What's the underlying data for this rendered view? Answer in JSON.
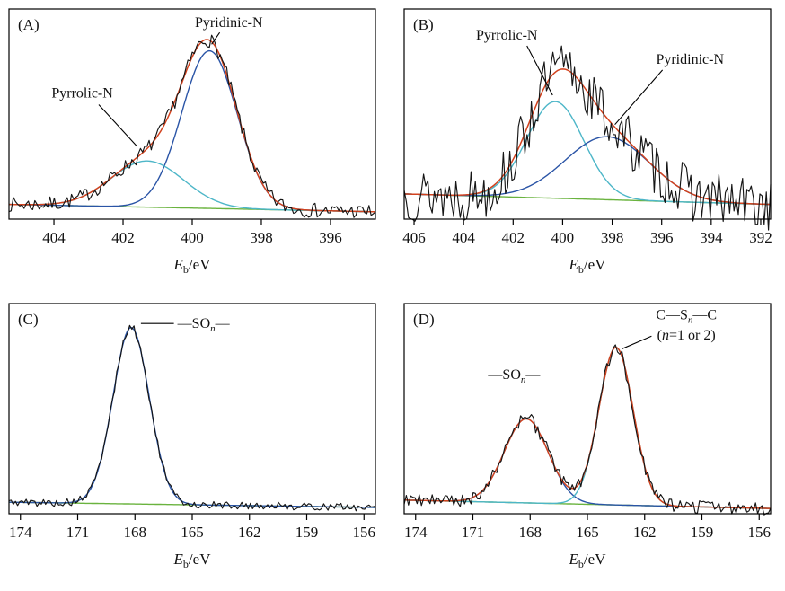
{
  "colors": {
    "raw": "#151515",
    "envelope": "#d2421e",
    "blue": "#2a54a6",
    "cyan": "#4db6c8",
    "baseline": "#6ab33f",
    "axis": "#000000"
  },
  "chart_data": [
    {
      "type": "line",
      "panel_label": "(A)",
      "xlabel": {
        "symbol": "E",
        "sub": "b",
        "unit": "/eV"
      },
      "x_domain": [
        405.3,
        394.7
      ],
      "x_ticks": [
        404,
        402,
        400,
        398,
        396
      ],
      "baseline": [
        0.07,
        0.035
      ],
      "noise_amp": 0.035,
      "seed": 7,
      "envelope": true,
      "peaks": [
        {
          "name": "Pyridinic-N",
          "center": 399.5,
          "sigma": 0.8,
          "height": 0.75,
          "color": "blue"
        },
        {
          "name": "Pyrrolic-N",
          "center": 401.3,
          "sigma": 1.05,
          "height": 0.22,
          "color": "cyan"
        }
      ],
      "annotations": [
        {
          "lines": [
            [
              {
                "t": "Pyridinic-N"
              }
            ]
          ],
          "tx": 0.6,
          "ty": 0.085,
          "anchor": "middle",
          "leader": [
            0.575,
            0.112,
            0.553,
            0.168
          ]
        },
        {
          "lines": [
            [
              {
                "t": "Pyrrolic-N"
              }
            ]
          ],
          "tx": 0.2,
          "ty": 0.42,
          "anchor": "middle",
          "leader": [
            0.245,
            0.455,
            0.35,
            0.655
          ]
        }
      ]
    },
    {
      "type": "line",
      "panel_label": "(B)",
      "xlabel": {
        "symbol": "E",
        "sub": "b",
        "unit": "/eV"
      },
      "x_domain": [
        406.4,
        391.6
      ],
      "x_ticks": [
        406,
        404,
        402,
        400,
        398,
        396,
        394,
        392
      ],
      "baseline": [
        0.12,
        0.07
      ],
      "noise_amp": 0.13,
      "seed": 13,
      "envelope": true,
      "peaks": [
        {
          "name": "Pyrrolic-N",
          "center": 400.3,
          "sigma": 1.15,
          "height": 0.46,
          "color": "cyan"
        },
        {
          "name": "Pyridinic-N",
          "center": 398.2,
          "sigma": 1.7,
          "height": 0.3,
          "color": "blue"
        }
      ],
      "annotations": [
        {
          "lines": [
            [
              {
                "t": "Pyrrolic-N"
              }
            ]
          ],
          "tx": 0.28,
          "ty": 0.145,
          "anchor": "middle",
          "leader": [
            0.335,
            0.175,
            0.405,
            0.41
          ]
        },
        {
          "lines": [
            [
              {
                "t": "Pyridinic-N"
              }
            ]
          ],
          "tx": 0.78,
          "ty": 0.26,
          "anchor": "middle",
          "leader": [
            0.705,
            0.29,
            0.575,
            0.55
          ]
        }
      ]
    },
    {
      "type": "line",
      "panel_label": "(C)",
      "xlabel": {
        "symbol": "E",
        "sub": "b",
        "unit": "/eV"
      },
      "x_domain": [
        174.6,
        155.4
      ],
      "x_ticks": [
        174,
        171,
        168,
        165,
        162,
        159,
        156
      ],
      "baseline": [
        0.055,
        0.03
      ],
      "noise_amp": 0.018,
      "seed": 5,
      "envelope": false,
      "peaks": [
        {
          "name": "—SOn—",
          "center": 168.2,
          "sigma": 0.95,
          "height": 0.84,
          "color": "blue"
        }
      ],
      "annotations": [
        {
          "lines": [
            [
              {
                "t": "—SO"
              },
              {
                "t": "n",
                "style": "sub"
              },
              {
                "t": "—"
              }
            ]
          ],
          "tx": 0.46,
          "ty": 0.115,
          "anchor": "start",
          "leader": [
            0.36,
            0.095,
            0.45,
            0.095
          ]
        }
      ]
    },
    {
      "type": "line",
      "panel_label": "(D)",
      "xlabel": {
        "symbol": "E",
        "sub": "b",
        "unit": "/eV"
      },
      "x_domain": [
        174.6,
        155.4
      ],
      "x_ticks": [
        174,
        171,
        168,
        165,
        162,
        159,
        156
      ],
      "baseline": [
        0.065,
        0.025
      ],
      "noise_amp": 0.032,
      "seed": 9,
      "envelope": true,
      "peaks": [
        {
          "name": "—SOn—",
          "center": 168.2,
          "sigma": 1.15,
          "height": 0.4,
          "color": "blue"
        },
        {
          "name": "C—Sn—C (n=1 or 2)",
          "center": 163.5,
          "sigma": 0.9,
          "height": 0.75,
          "color": "cyan"
        }
      ],
      "annotations": [
        {
          "lines": [
            [
              {
                "t": "—SO"
              },
              {
                "t": "n",
                "style": "sub"
              },
              {
                "t": "—"
              }
            ]
          ],
          "tx": 0.3,
          "ty": 0.36,
          "anchor": "middle"
        },
        {
          "lines": [
            [
              {
                "t": "C—S"
              },
              {
                "t": "n",
                "style": "sub"
              },
              {
                "t": "—C"
              }
            ],
            [
              {
                "t": "("
              },
              {
                "t": "n",
                "style": "ital"
              },
              {
                "t": "=1 or 2)"
              }
            ]
          ],
          "tx": 0.77,
          "ty": 0.075,
          "anchor": "middle",
          "leader": [
            0.675,
            0.155,
            0.595,
            0.215
          ]
        }
      ]
    }
  ]
}
